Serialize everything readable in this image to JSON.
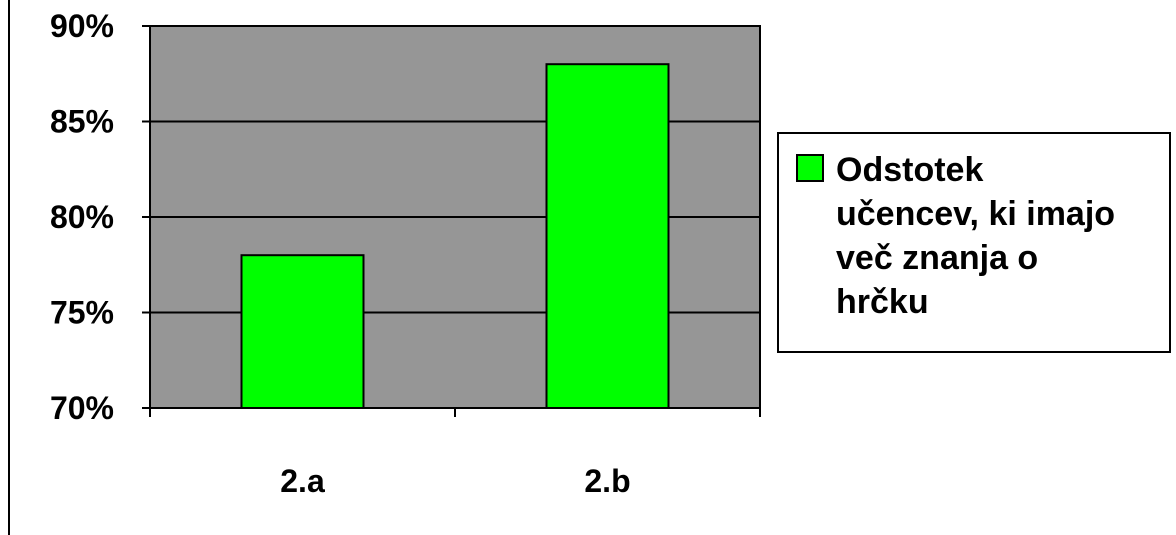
{
  "chart_data": {
    "type": "bar",
    "categories": [
      "2.a",
      "2.b"
    ],
    "series": [
      {
        "name": "Odstotek učencev, ki imajo več znanja o hrčku",
        "values": [
          78,
          88
        ]
      }
    ],
    "ylim": [
      70,
      90
    ],
    "y_ticks": [
      70,
      75,
      80,
      85,
      90
    ],
    "y_tick_labels": [
      "70%",
      "75%",
      "80%",
      "85%",
      "90%"
    ],
    "grid": true,
    "legend_position": "right",
    "legend_lines": [
      "Odstotek",
      "učencev, ki imajo",
      "več znanja o",
      "hrčku"
    ],
    "colors": {
      "plot_background": "#969696",
      "bar_fill": "#00ff00",
      "axis": "#000000"
    }
  }
}
